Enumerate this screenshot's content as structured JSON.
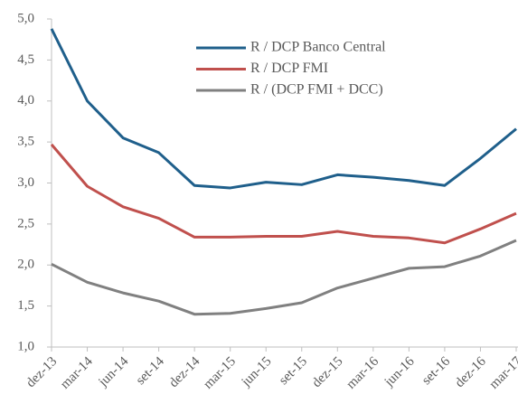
{
  "chart_data": {
    "type": "line",
    "categories": [
      "dez-13",
      "mar-14",
      "jun-14",
      "set-14",
      "dez-14",
      "mar-15",
      "jun-15",
      "set-15",
      "dez-15",
      "mar-16",
      "jun-16",
      "set-16",
      "dez-16",
      "mar-17"
    ],
    "series": [
      {
        "name": "R / DCP Banco Central",
        "color": "#1f5f8b",
        "values": [
          4.88,
          4.0,
          3.55,
          3.37,
          2.97,
          2.94,
          3.01,
          2.98,
          3.1,
          3.07,
          3.03,
          2.97,
          3.3,
          3.66
        ]
      },
      {
        "name": "R / DCP FMI",
        "color": "#c0504d",
        "values": [
          3.47,
          2.96,
          2.71,
          2.57,
          2.34,
          2.34,
          2.35,
          2.35,
          2.41,
          2.35,
          2.33,
          2.27,
          2.44,
          2.63
        ]
      },
      {
        "name": "R / (DCP FMI + DCC)",
        "color": "#808080",
        "values": [
          2.01,
          1.79,
          1.66,
          1.56,
          1.4,
          1.41,
          1.47,
          1.54,
          1.72,
          1.84,
          1.96,
          1.98,
          2.11,
          2.3
        ]
      }
    ],
    "ylim": [
      1,
      5
    ],
    "yticks": [
      {
        "value": 1,
        "label": "1,0"
      },
      {
        "value": 1.5,
        "label": "1,5"
      },
      {
        "value": 2,
        "label": "2,0"
      },
      {
        "value": 2.5,
        "label": "2,5"
      },
      {
        "value": 3,
        "label": "3,0"
      },
      {
        "value": 3.5,
        "label": "3,5"
      },
      {
        "value": 4,
        "label": "4,0"
      },
      {
        "value": 4.5,
        "label": "4,5"
      },
      {
        "value": 5,
        "label": "5,0"
      }
    ],
    "grid": false,
    "legend": "top"
  }
}
